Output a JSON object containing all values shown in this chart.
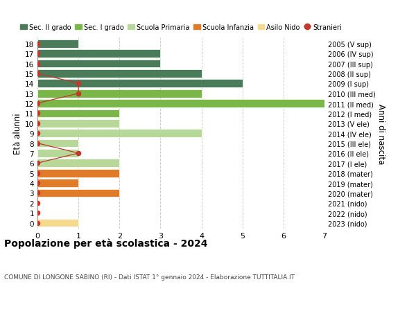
{
  "ages": [
    18,
    17,
    16,
    15,
    14,
    13,
    12,
    11,
    10,
    9,
    8,
    7,
    6,
    5,
    4,
    3,
    2,
    1,
    0
  ],
  "right_labels": [
    "2005 (V sup)",
    "2006 (IV sup)",
    "2007 (III sup)",
    "2008 (II sup)",
    "2009 (I sup)",
    "2010 (III med)",
    "2011 (II med)",
    "2012 (I med)",
    "2013 (V ele)",
    "2014 (IV ele)",
    "2015 (III ele)",
    "2016 (II ele)",
    "2017 (I ele)",
    "2018 (mater)",
    "2019 (mater)",
    "2020 (mater)",
    "2021 (nido)",
    "2022 (nido)",
    "2023 (nido)"
  ],
  "bar_values": [
    1,
    3,
    3,
    4,
    5,
    4,
    7,
    2,
    2,
    4,
    1,
    1,
    2,
    2,
    1,
    2,
    0,
    0,
    1
  ],
  "bar_colors": [
    "#4a7c59",
    "#4a7c59",
    "#4a7c59",
    "#4a7c59",
    "#4a7c59",
    "#7ab648",
    "#7ab648",
    "#7ab648",
    "#b8d89a",
    "#b8d89a",
    "#b8d89a",
    "#b8d89a",
    "#b8d89a",
    "#e07b2a",
    "#e07b2a",
    "#e07b2a",
    "#f5d98e",
    "#f5d98e",
    "#f5d98e"
  ],
  "stranieri_values": [
    0,
    0,
    0,
    0,
    1,
    1,
    0,
    0,
    0,
    0,
    0,
    1,
    0,
    0,
    0,
    0,
    0,
    0,
    0
  ],
  "stranieri_color": "#c0392b",
  "title": "Popolazione per età scolastica - 2024",
  "subtitle": "COMUNE DI LONGONE SABINO (RI) - Dati ISTAT 1° gennaio 2024 - Elaborazione TUTTITALIA.IT",
  "ylabel": "Età alunni",
  "right_ylabel": "Anni di nascita",
  "xlim": [
    0,
    7
  ],
  "legend_entries": [
    {
      "label": "Sec. II grado",
      "color": "#4a7c59"
    },
    {
      "label": "Sec. I grado",
      "color": "#7ab648"
    },
    {
      "label": "Scuola Primaria",
      "color": "#b8d89a"
    },
    {
      "label": "Scuola Infanzia",
      "color": "#e07b2a"
    },
    {
      "label": "Asilo Nido",
      "color": "#f5d98e"
    },
    {
      "label": "Stranieri",
      "color": "#c0392b",
      "marker": "o"
    }
  ],
  "background_color": "#ffffff",
  "grid_color": "#cccccc"
}
